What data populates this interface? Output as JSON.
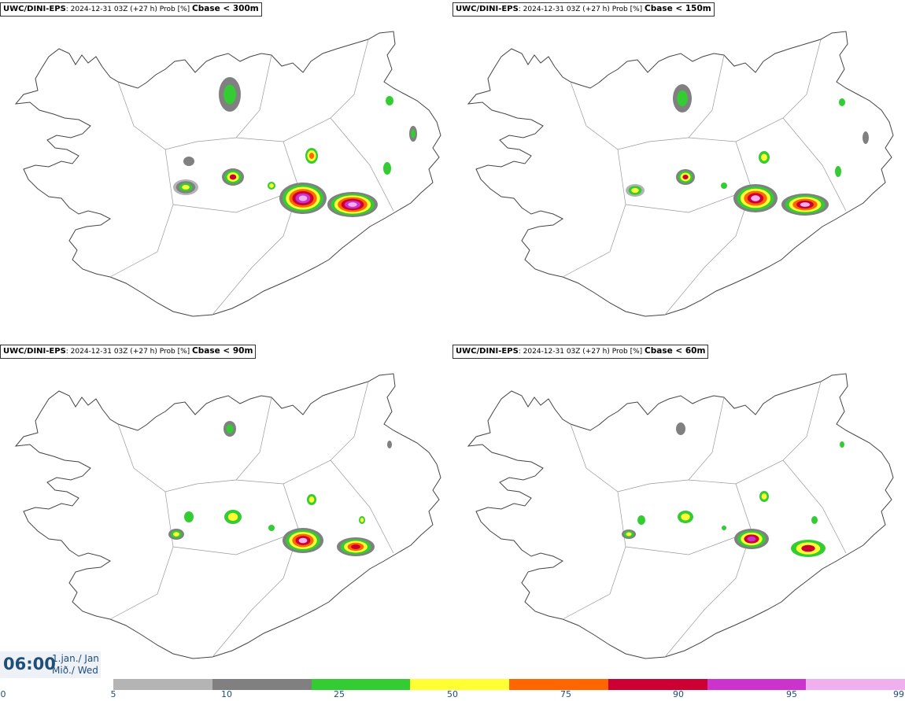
{
  "panels": [
    {
      "model": "UWC/DINI-EPS",
      "info": ": 2024-12-31 03Z (+27 h) Prob [%]",
      "threshold": "Cbase < 300m"
    },
    {
      "model": "UWC/DINI-EPS",
      "info": ": 2024-12-31 03Z (+27 h) Prob [%]",
      "threshold": "Cbase < 150m"
    },
    {
      "model": "UWC/DINI-EPS",
      "info": ": 2024-12-31 03Z (+27 h) Prob [%]",
      "threshold": "Cbase < 90m"
    },
    {
      "model": "UWC/DINI-EPS",
      "info": ": 2024-12-31 03Z (+27 h) Prob [%]",
      "threshold": "Cbase < 60m"
    }
  ],
  "valid_time": {
    "time": "06:00",
    "date_line1": "1.jan./ Jan",
    "date_line2": "Mið./ Wed"
  },
  "legend": {
    "ticks": [
      "0",
      "5",
      "10",
      "25",
      "50",
      "75",
      "90",
      "95",
      "99"
    ],
    "colors": [
      "#b4b4b4",
      "#808080",
      "#33cc33",
      "#ffff33",
      "#ff6600",
      "#cc0033",
      "#cc33cc",
      "#f0b0f0"
    ]
  }
}
